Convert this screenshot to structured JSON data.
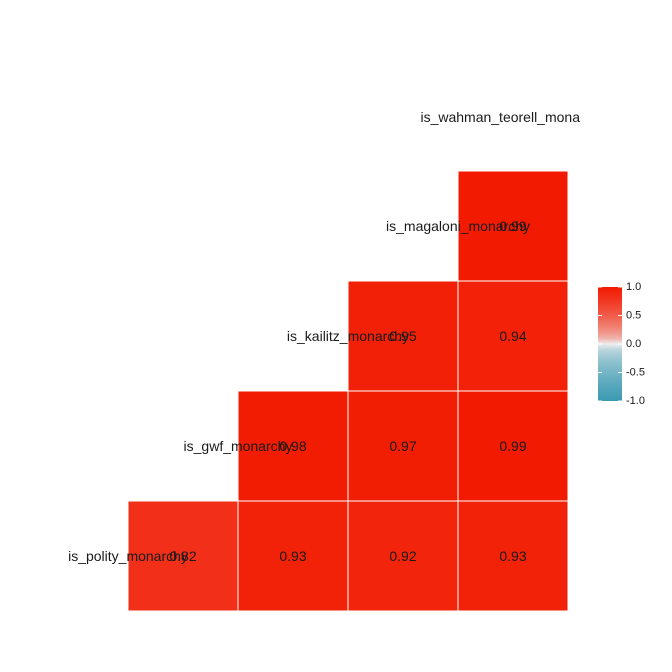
{
  "chart_data": {
    "type": "heatmap",
    "variables": [
      "is_polity_monarchy",
      "is_gwf_monarchy",
      "is_kailitz_monarchy",
      "is_magaloni_monarchy",
      "is_wahman_teorell_monarchy"
    ],
    "label_texts": [
      "is_polity_monarchy",
      "is_gwf_monarchy",
      "is_kailitz_monarchy",
      "is_magaloni_monarchy",
      "is_wahman_teorell_mona"
    ],
    "cells": [
      {
        "row": "is_polity_monarchy",
        "col": "is_gwf_monarchy",
        "value": 0.82,
        "label": "0.82"
      },
      {
        "row": "is_polity_monarchy",
        "col": "is_kailitz_monarchy",
        "value": 0.93,
        "label": "0.93"
      },
      {
        "row": "is_polity_monarchy",
        "col": "is_magaloni_monarchy",
        "value": 0.92,
        "label": "0.92"
      },
      {
        "row": "is_polity_monarchy",
        "col": "is_wahman_teorell_monarchy",
        "value": 0.93,
        "label": "0.93"
      },
      {
        "row": "is_gwf_monarchy",
        "col": "is_kailitz_monarchy",
        "value": 0.98,
        "label": "0.98"
      },
      {
        "row": "is_gwf_monarchy",
        "col": "is_magaloni_monarchy",
        "value": 0.97,
        "label": "0.97"
      },
      {
        "row": "is_gwf_monarchy",
        "col": "is_wahman_teorell_monarchy",
        "value": 0.99,
        "label": "0.99"
      },
      {
        "row": "is_kailitz_monarchy",
        "col": "is_magaloni_monarchy",
        "value": 0.95,
        "label": "0.95"
      },
      {
        "row": "is_kailitz_monarchy",
        "col": "is_wahman_teorell_monarchy",
        "value": 0.94,
        "label": "0.94"
      },
      {
        "row": "is_magaloni_monarchy",
        "col": "is_wahman_teorell_monarchy",
        "value": 0.99,
        "label": "0.99"
      }
    ],
    "legend": {
      "position": "right",
      "range": [
        -1,
        1
      ],
      "ticks": [
        1,
        0.5,
        0,
        -0.5,
        -1
      ],
      "tick_labels": [
        "1.0",
        "0.5",
        "0.0",
        "-0.5",
        "-1.0"
      ],
      "colors": {
        "low": "#3a9ab2",
        "mid": "#eeeeee",
        "high": "#f21a00"
      }
    },
    "title": "",
    "xlabel": "",
    "ylabel": "",
    "grid": false
  }
}
